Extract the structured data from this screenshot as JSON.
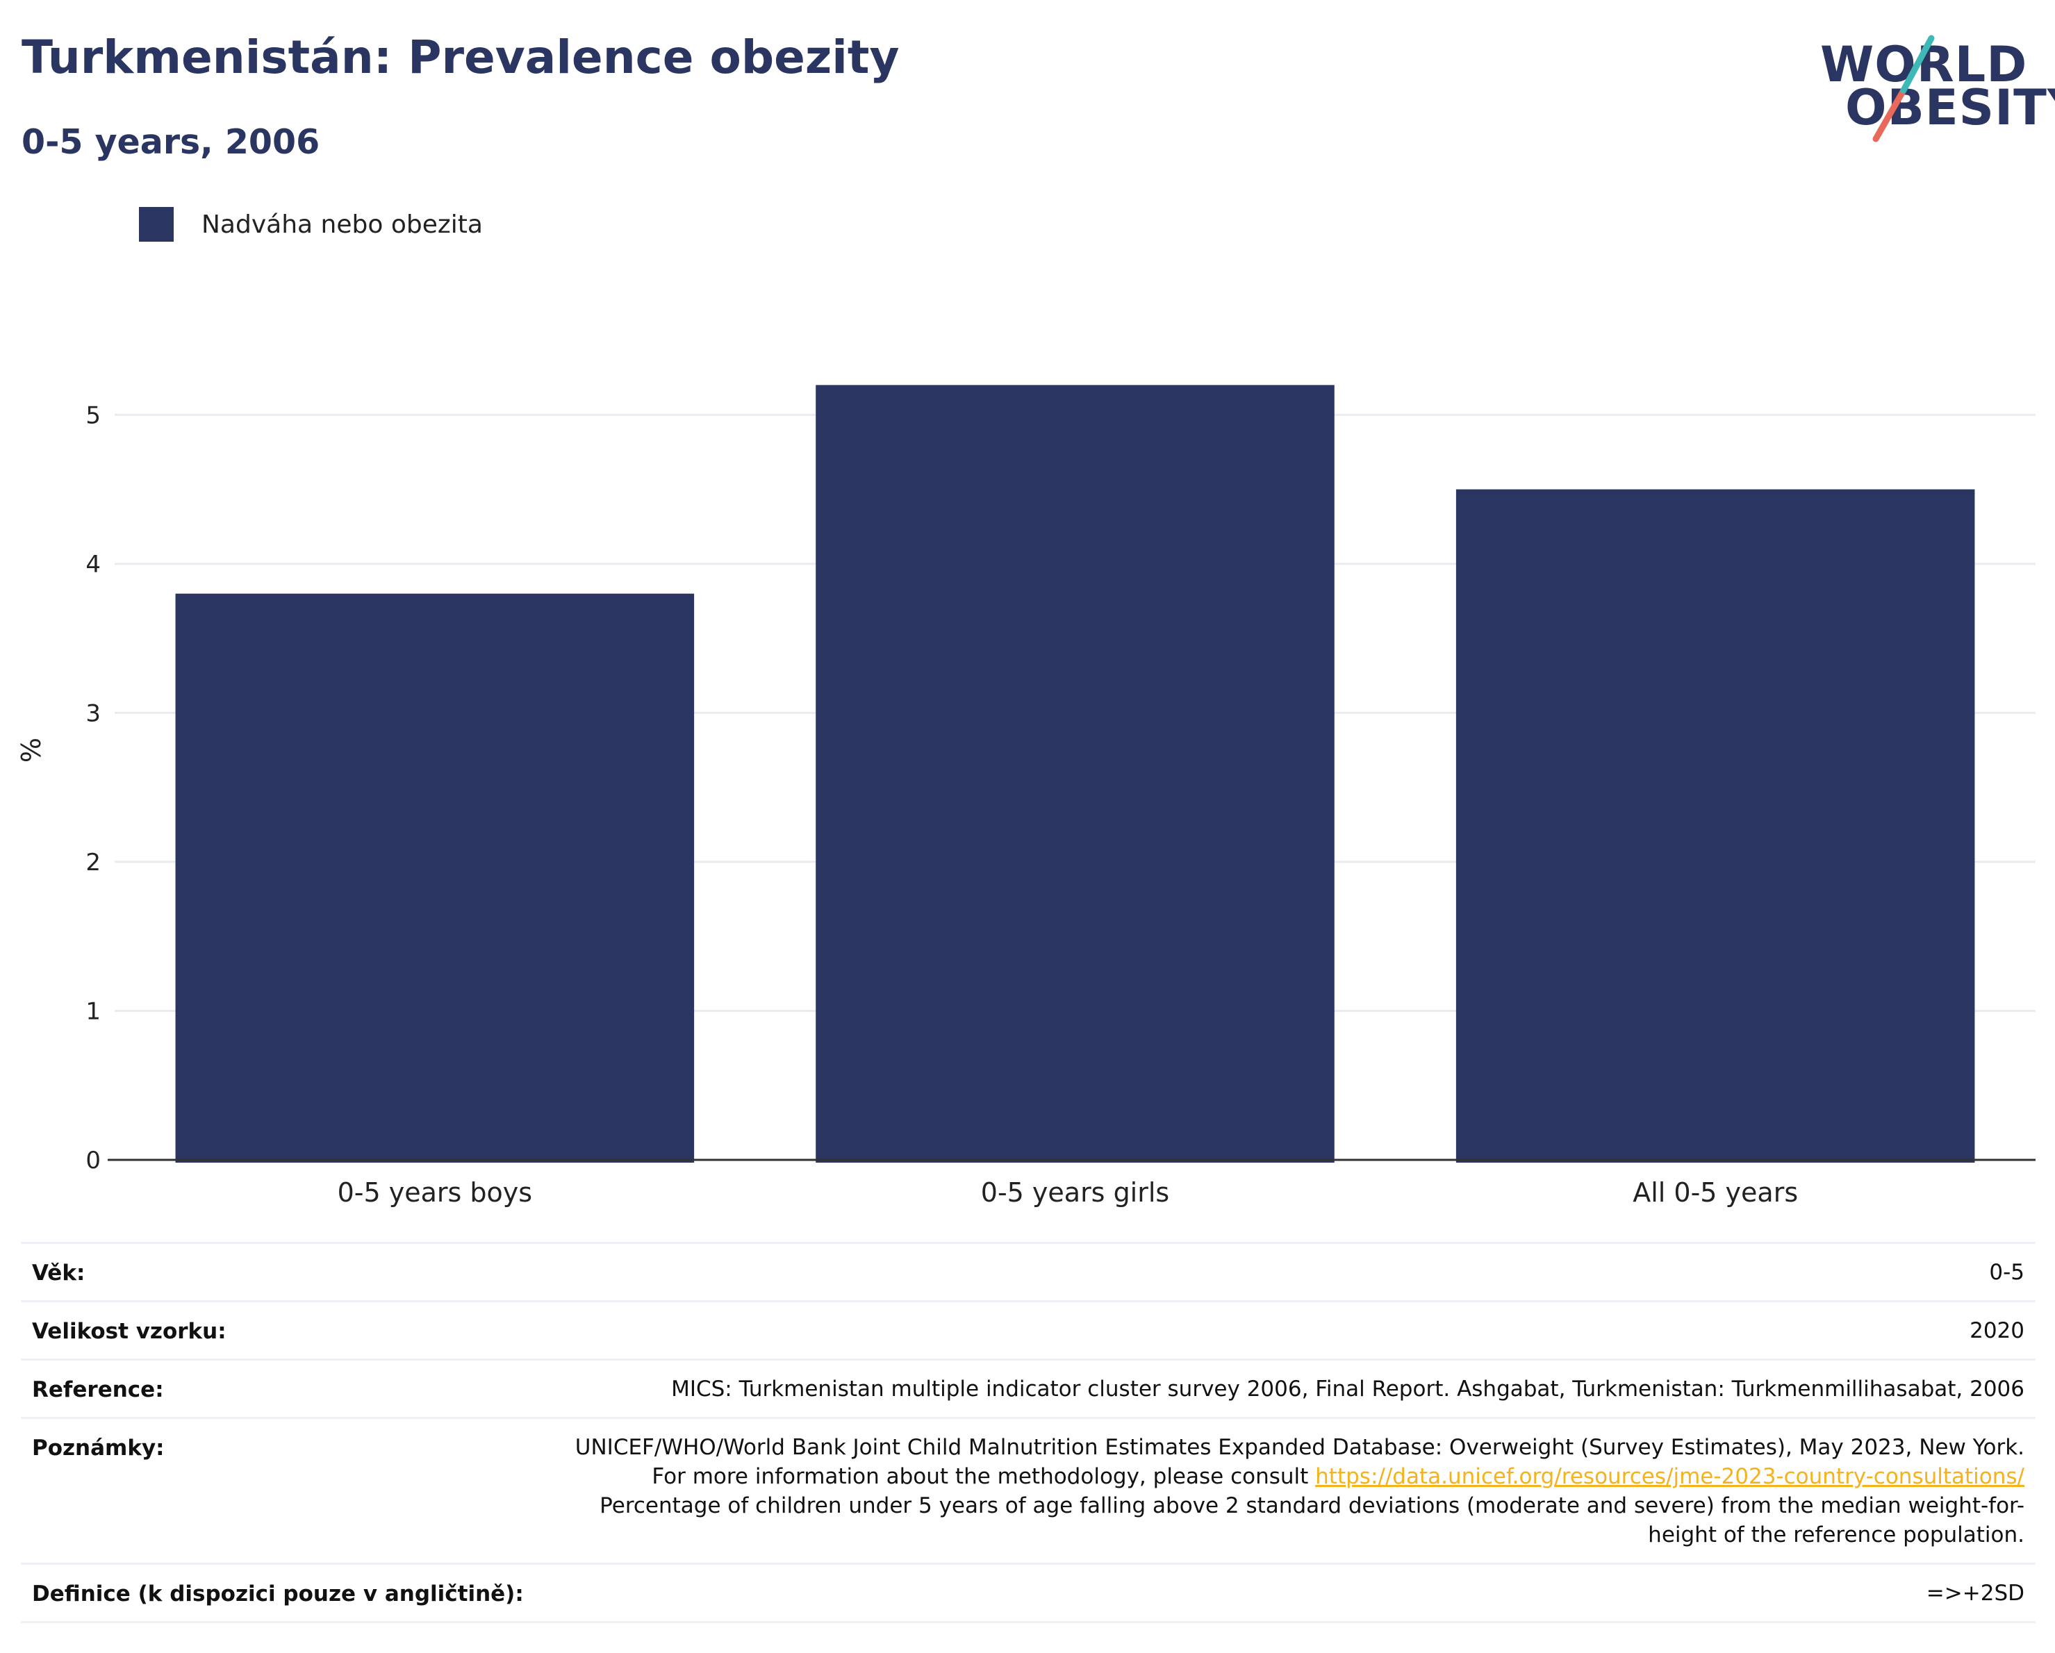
{
  "header": {
    "title": "Turkmenistán: Prevalence obezity",
    "subtitle": "0-5 years, 2006"
  },
  "logo": {
    "line1": "WORLD",
    "line2": "OBESITY",
    "slash_colors": [
      "#3fb8b8",
      "#e8685a"
    ]
  },
  "legend": {
    "label": "Nadváha nebo obezita",
    "color": "#2a3661"
  },
  "chart_data": {
    "type": "bar",
    "categories": [
      "0-5 years boys",
      "0-5 years girls",
      "All 0-5 years"
    ],
    "series": [
      {
        "name": "Nadváha nebo obezita",
        "values": [
          3.8,
          5.2,
          4.5
        ],
        "color": "#2a3661"
      }
    ],
    "ylabel": "%",
    "ylim": [
      0,
      5.5
    ],
    "yticks": [
      0,
      1,
      2,
      3,
      4,
      5
    ],
    "grid": true,
    "legend_position": "top-left"
  },
  "meta": {
    "age": {
      "label": "Věk:",
      "value": "0-5"
    },
    "sample": {
      "label": "Velikost vzorku:",
      "value": "2020"
    },
    "reference": {
      "label": "Reference:",
      "value": "MICS: Turkmenistan multiple indicator cluster survey 2006, Final Report. Ashgabat, Turkmenistan: Turkmenmillihasabat, 2006"
    },
    "notes": {
      "label": "Poznámky:",
      "text1": "UNICEF/WHO/World Bank Joint Child Malnutrition Estimates Expanded Database: Overweight (Survey Estimates), May 2023, New York. For more information about the methodology, please consult ",
      "link": "https://data.unicef.org/resources/jme-2023-country-consultations/",
      "text2": " Percentage of children under 5 years of age falling above 2 standard deviations (moderate and severe) from the median weight-for-height of the reference population."
    },
    "definition": {
      "label": "Definice (k dispozici pouze v angličtině):",
      "value": "=>+2SD"
    }
  }
}
